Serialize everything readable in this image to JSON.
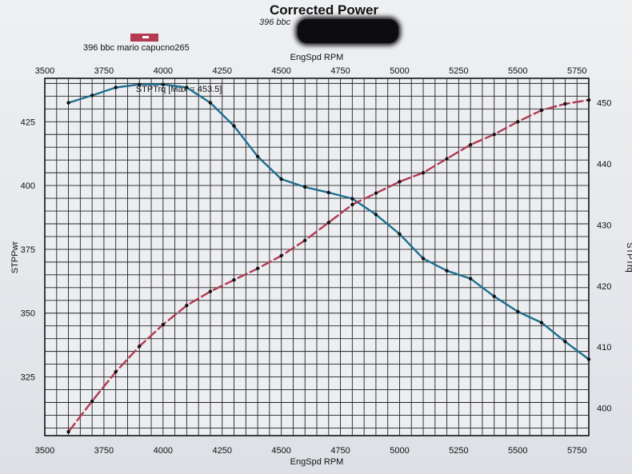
{
  "chart_data": {
    "type": "line",
    "title": "Corrected Power",
    "subtitle": "396 bbc",
    "legend": [
      "396 bbc mario capucno265"
    ],
    "xlabel": "EngSpd RPM",
    "x2label": "EngSpd RPM",
    "ylabel": "STPPwr",
    "y2label": "STPTrq",
    "annotation": "STPTrq [Max = 453.5]",
    "xlim": [
      3500,
      5800
    ],
    "ylim": [
      302,
      442
    ],
    "y2lim": [
      395.5,
      454
    ],
    "x_ticks": [
      3500,
      3750,
      4000,
      4250,
      4500,
      4750,
      5000,
      5250,
      5500,
      5750
    ],
    "y_ticks": [
      325,
      350,
      375,
      400,
      425
    ],
    "y2_ticks": [
      400,
      410,
      420,
      430,
      440,
      450
    ],
    "colors": {
      "power": "#b23a52",
      "torque": "#1d6e8f"
    },
    "series": [
      {
        "name": "STPTrq",
        "axis": "right",
        "x": [
          3600,
          3700,
          3800,
          3900,
          4000,
          4100,
          4200,
          4300,
          4400,
          4500,
          4600,
          4700,
          4800,
          4900,
          5000,
          5100,
          5200,
          5300,
          5400,
          5500,
          5600,
          5700,
          5800
        ],
        "values": [
          450.0,
          451.2,
          452.5,
          453.0,
          453.0,
          452.5,
          450.0,
          446.2,
          441.2,
          437.5,
          436.2,
          435.3,
          434.3,
          431.7,
          428.5,
          424.5,
          422.5,
          421.2,
          418.3,
          415.8,
          414.0,
          410.9,
          408.0
        ]
      },
      {
        "name": "STPPwr",
        "axis": "left",
        "x": [
          3600,
          3700,
          3800,
          3900,
          4000,
          4100,
          4200,
          4300,
          4400,
          4500,
          4600,
          4700,
          4800,
          4900,
          5000,
          5100,
          5200,
          5300,
          5400,
          5500,
          5600,
          5700,
          5800
        ],
        "values": [
          303.5,
          315.5,
          327.0,
          337.0,
          345.5,
          353.0,
          358.5,
          363.0,
          367.5,
          372.5,
          378.5,
          385.5,
          392.5,
          397.0,
          401.5,
          405.0,
          410.5,
          416.0,
          420.0,
          425.0,
          429.5,
          432.0,
          433.5
        ]
      }
    ]
  }
}
